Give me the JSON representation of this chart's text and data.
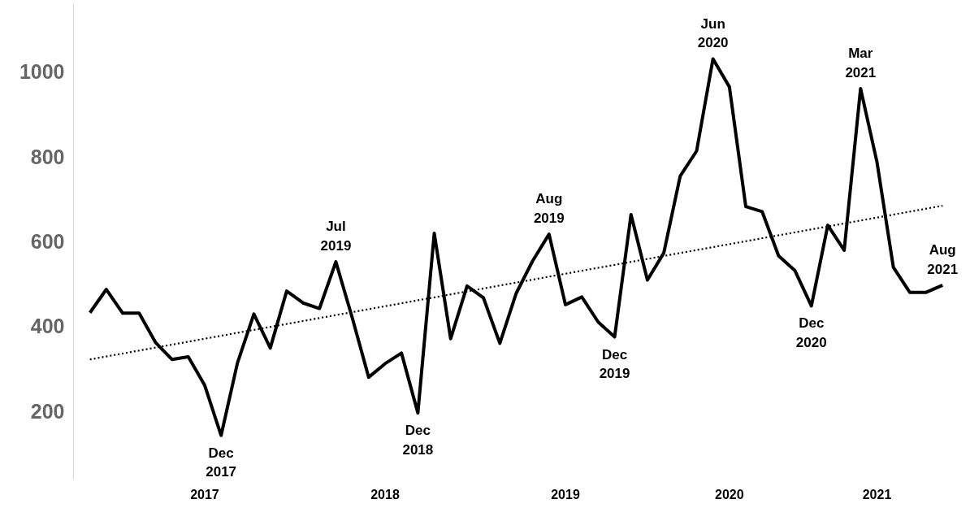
{
  "chart_data": {
    "type": "line",
    "categories": [
      null,
      null,
      null,
      null,
      null,
      null,
      null,
      "2017",
      null,
      null,
      null,
      null,
      null,
      null,
      null,
      null,
      null,
      null,
      "2018",
      null,
      null,
      null,
      null,
      null,
      null,
      null,
      null,
      null,
      null,
      "2019",
      null,
      null,
      null,
      null,
      null,
      null,
      null,
      null,
      null,
      "2020",
      null,
      null,
      null,
      null,
      null,
      null,
      null,
      null,
      "2021",
      null,
      null,
      null,
      null
    ],
    "series": [
      {
        "color": "#000000",
        "line_style": "solid",
        "values": [
          432,
          487,
          431,
          431,
          362,
          322,
          328,
          261,
          143,
          314,
          429,
          349,
          483,
          455,
          442,
          552,
          420,
          280,
          312,
          337,
          196,
          619,
          371,
          495,
          467,
          360,
          478,
          554,
          617,
          451,
          469,
          410,
          375,
          663,
          509,
          573,
          754,
          813,
          1030,
          964,
          682,
          670,
          566,
          531,
          448,
          638,
          579,
          960,
          787,
          539,
          480,
          480,
          497
        ]
      },
      {
        "type": "line",
        "color": "#000000",
        "line_style": "dotted",
        "values": [
          322,
          null,
          null,
          null,
          null,
          null,
          null,
          null,
          null,
          null,
          null,
          null,
          null,
          null,
          null,
          null,
          null,
          null,
          null,
          null,
          null,
          null,
          null,
          null,
          null,
          null,
          null,
          null,
          null,
          null,
          null,
          null,
          null,
          null,
          null,
          null,
          null,
          null,
          null,
          null,
          null,
          null,
          null,
          null,
          null,
          null,
          null,
          null,
          null,
          null,
          null,
          null,
          684
        ]
      }
    ],
    "ylim": [
      40,
      1160
    ],
    "yticks": [
      200,
      400,
      600,
      800,
      1000
    ],
    "grid": false,
    "marker": "none",
    "annotations": [
      {
        "text": "Dec\n2017",
        "y": 143
      },
      {
        "text": "Jul\n2019",
        "y": 552
      },
      {
        "text": "Dec\n2018",
        "y": 196
      },
      {
        "text": "Aug\n2019",
        "y": 617
      },
      {
        "text": "Dec\n2019",
        "y": 375
      },
      {
        "text": "Jun\n2020",
        "y": 1030
      },
      {
        "text": "Dec\n2020",
        "y": 448
      },
      {
        "text": "Mar\n2021",
        "y": 960
      },
      {
        "text": "Aug\n2021",
        "y": 497
      }
    ]
  }
}
